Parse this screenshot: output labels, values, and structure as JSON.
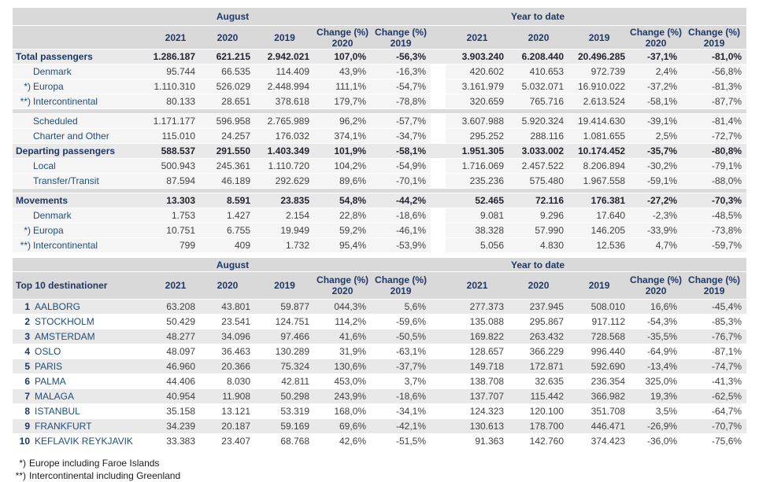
{
  "header": {
    "group_august": "August",
    "group_ytd": "Year to date",
    "years": [
      "2021",
      "2020",
      "2019"
    ],
    "change_label": "Change (%)"
  },
  "table1": {
    "rows": [
      {
        "type": "band",
        "mark": "",
        "label": "Total passengers",
        "aug": [
          "1.286.187",
          "621.215",
          "2.942.021",
          "107,0%",
          "-56,3%"
        ],
        "ytd": [
          "3.903.240",
          "6.208.440",
          "20.496.285",
          "-37,1%",
          "-81,0%"
        ]
      },
      {
        "type": "detail",
        "mark": "",
        "label": "Denmark",
        "aug": [
          "95.744",
          "66.535",
          "114.409",
          "43,9%",
          "-16,3%"
        ],
        "ytd": [
          "420.602",
          "410.653",
          "972.739",
          "2,4%",
          "-56,8%"
        ]
      },
      {
        "type": "detail",
        "mark": "*)",
        "label": "Europa",
        "aug": [
          "1.110.310",
          "526.029",
          "2.448.994",
          "111,1%",
          "-54,7%"
        ],
        "ytd": [
          "3.161.979",
          "5.032.071",
          "16.910.022",
          "-37,2%",
          "-81,3%"
        ]
      },
      {
        "type": "detail",
        "mark": "**)",
        "label": "Intercontinental",
        "aug": [
          "80.133",
          "28.651",
          "378.618",
          "179,7%",
          "-78,8%"
        ],
        "ytd": [
          "320.659",
          "765.716",
          "2.613.524",
          "-58,1%",
          "-87,7%"
        ]
      },
      {
        "type": "sep"
      },
      {
        "type": "detail",
        "mark": "",
        "label": "Scheduled",
        "aug": [
          "1.171.177",
          "596.958",
          "2.765.989",
          "96,2%",
          "-57,7%"
        ],
        "ytd": [
          "3.607.988",
          "5.920.324",
          "19.414.630",
          "-39,1%",
          "-81,4%"
        ]
      },
      {
        "type": "detail",
        "mark": "",
        "label": "Charter and Other",
        "aug": [
          "115.010",
          "24.257",
          "176.032",
          "374,1%",
          "-34,7%"
        ],
        "ytd": [
          "295.252",
          "288.116",
          "1.081.655",
          "2,5%",
          "-72,7%"
        ]
      },
      {
        "type": "band",
        "mark": "",
        "label": "Departing passengers",
        "aug": [
          "588.537",
          "291.550",
          "1.403.349",
          "101,9%",
          "-58,1%"
        ],
        "ytd": [
          "1.951.305",
          "3.033.002",
          "10.174.452",
          "-35,7%",
          "-80,8%"
        ]
      },
      {
        "type": "detail",
        "mark": "",
        "label": "Local",
        "aug": [
          "500.943",
          "245.361",
          "1.110.720",
          "104,2%",
          "-54,9%"
        ],
        "ytd": [
          "1.716.069",
          "2.457.522",
          "8.206.894",
          "-30,2%",
          "-79,1%"
        ]
      },
      {
        "type": "detail",
        "mark": "",
        "label": "Transfer/Transit",
        "aug": [
          "87.594",
          "46.189",
          "292.629",
          "89,6%",
          "-70,1%"
        ],
        "ytd": [
          "235.236",
          "575.480",
          "1.967.558",
          "-59,1%",
          "-88,0%"
        ]
      },
      {
        "type": "sep"
      },
      {
        "type": "band",
        "mark": "",
        "label": "Movements",
        "aug": [
          "13.303",
          "8.591",
          "23.835",
          "54,8%",
          "-44,2%"
        ],
        "ytd": [
          "52.465",
          "72.116",
          "176.381",
          "-27,2%",
          "-70,3%"
        ]
      },
      {
        "type": "detail",
        "mark": "",
        "label": "Denmark",
        "aug": [
          "1.753",
          "1.427",
          "2.154",
          "22,8%",
          "-18,6%"
        ],
        "ytd": [
          "9.081",
          "9.296",
          "17.640",
          "-2,3%",
          "-48,5%"
        ]
      },
      {
        "type": "detail",
        "mark": "*)",
        "label": "Europa",
        "aug": [
          "10.751",
          "6.755",
          "19.949",
          "59,2%",
          "-46,1%"
        ],
        "ytd": [
          "38.328",
          "57.990",
          "146.205",
          "-33,9%",
          "-73,8%"
        ]
      },
      {
        "type": "detail",
        "mark": "**)",
        "label": "Intercontinental",
        "aug": [
          "799",
          "409",
          "1.732",
          "95,4%",
          "-53,9%"
        ],
        "ytd": [
          "5.056",
          "4.830",
          "12.536",
          "4,7%",
          "-59,7%"
        ]
      }
    ]
  },
  "table2": {
    "title": "Top 10 destinationer",
    "rows": [
      {
        "rank": "1",
        "name": "AALBORG",
        "aug": [
          "63.208",
          "43.801",
          "59.877",
          "044,3%",
          "5,6%"
        ],
        "ytd": [
          "277.373",
          "237.945",
          "508.010",
          "16,6%",
          "-45,4%"
        ]
      },
      {
        "rank": "2",
        "name": "STOCKHOLM",
        "aug": [
          "50.429",
          "23.541",
          "124.751",
          "114,2%",
          "-59,6%"
        ],
        "ytd": [
          "135.088",
          "295.867",
          "917.112",
          "-54,3%",
          "-85,3%"
        ]
      },
      {
        "rank": "3",
        "name": "AMSTERDAM",
        "aug": [
          "48.277",
          "34.096",
          "97.466",
          "41,6%",
          "-50,5%"
        ],
        "ytd": [
          "169.822",
          "263.432",
          "728.568",
          "-35,5%",
          "-76,7%"
        ]
      },
      {
        "rank": "4",
        "name": "OSLO",
        "aug": [
          "48.097",
          "36.463",
          "130.289",
          "31,9%",
          "-63,1%"
        ],
        "ytd": [
          "128.657",
          "366.229",
          "996.440",
          "-64,9%",
          "-87,1%"
        ]
      },
      {
        "rank": "5",
        "name": "PARIS",
        "aug": [
          "46.960",
          "20.366",
          "75.324",
          "130,6%",
          "-37,7%"
        ],
        "ytd": [
          "149.718",
          "172.871",
          "592.690",
          "-13,4%",
          "-74,7%"
        ]
      },
      {
        "rank": "6",
        "name": "PALMA",
        "aug": [
          "44.406",
          "8.030",
          "42.811",
          "453,0%",
          "3,7%"
        ],
        "ytd": [
          "138.708",
          "32.635",
          "236.354",
          "325,0%",
          "-41,3%"
        ]
      },
      {
        "rank": "7",
        "name": "MALAGA",
        "aug": [
          "40.954",
          "11.908",
          "50.298",
          "243,9%",
          "-18,6%"
        ],
        "ytd": [
          "137.707",
          "115.442",
          "366.982",
          "19,3%",
          "-62,5%"
        ]
      },
      {
        "rank": "8",
        "name": "ISTANBUL",
        "aug": [
          "35.158",
          "13.121",
          "53.319",
          "168,0%",
          "-34,1%"
        ],
        "ytd": [
          "124.323",
          "120.100",
          "351.708",
          "3,5%",
          "-64,7%"
        ]
      },
      {
        "rank": "9",
        "name": "FRANKFURT",
        "aug": [
          "34.239",
          "20.187",
          "59.169",
          "69,6%",
          "-42,1%"
        ],
        "ytd": [
          "130.613",
          "178.700",
          "446.471",
          "-26,9%",
          "-70,7%"
        ]
      },
      {
        "rank": "10",
        "name": "KEFLAVIK REYKJAVIK",
        "aug": [
          "33.383",
          "23.407",
          "68.768",
          "42,6%",
          "-51,5%"
        ],
        "ytd": [
          "91.363",
          "142.760",
          "374.423",
          "-36,0%",
          "-75,6%"
        ]
      }
    ]
  },
  "footnotes": [
    {
      "mark": "*)",
      "text": "Europe including Faroe Islands"
    },
    {
      "mark": "**)",
      "text": "Intercontinental including Greenland"
    }
  ],
  "colors": {
    "header_bg": "#d9d9d9",
    "band_bg": "#e9e9e9",
    "detail_bg": "#f5f5f5",
    "shade_bg": "#e9e9e9",
    "navy_text": "#1f3864",
    "blue_text": "#1f4e79",
    "number_text": "#404040"
  }
}
